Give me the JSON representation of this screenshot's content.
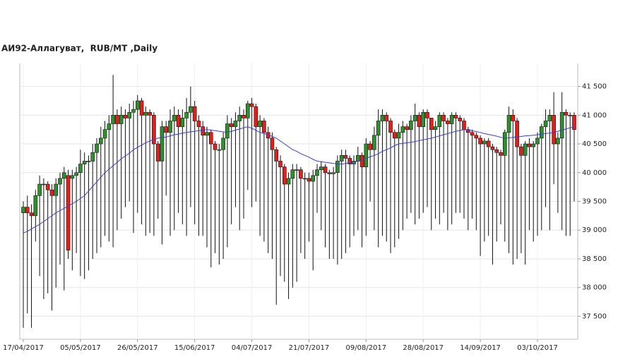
{
  "chart_data": {
    "type": "candlestick",
    "title": "АИ92-Аллагуват,  RUB/MT ,Daily",
    "categories": [
      "17/04/2017",
      null,
      null,
      null,
      null,
      null,
      null,
      null,
      null,
      null,
      null,
      null,
      null,
      null,
      "05/05/2017",
      null,
      null,
      null,
      null,
      null,
      null,
      null,
      null,
      null,
      null,
      null,
      null,
      null,
      "26/05/2017",
      null,
      null,
      null,
      null,
      null,
      null,
      null,
      null,
      null,
      null,
      null,
      null,
      null,
      "15/06/2017",
      null,
      null,
      null,
      null,
      null,
      null,
      null,
      null,
      null,
      null,
      null,
      null,
      null,
      "04/07/2017",
      null,
      null,
      null,
      null,
      null,
      null,
      null,
      null,
      null,
      null,
      null,
      null,
      null,
      "21/07/2017",
      null,
      null,
      null,
      null,
      null,
      null,
      null,
      null,
      null,
      null,
      null,
      null,
      null,
      "09/08/2017",
      null,
      null,
      null,
      null,
      null,
      null,
      null,
      null,
      null,
      null,
      null,
      null,
      null,
      "28/08/2017",
      null,
      null,
      null,
      null,
      null,
      null,
      null,
      null,
      null,
      null,
      null,
      null,
      null,
      "14/09/2017",
      null,
      null,
      null,
      null,
      null,
      null,
      null,
      null,
      null,
      null,
      null,
      null,
      null,
      "03/10/2017",
      null,
      null,
      null,
      null,
      null,
      null,
      null,
      null,
      null
    ],
    "open": [
      39300,
      39400,
      39300,
      39250,
      39600,
      39800,
      39800,
      39700,
      39600,
      39800,
      39900,
      39950,
      39900,
      39950,
      40000,
      40150,
      40200,
      40200,
      40350,
      40500,
      40600,
      40750,
      40850,
      41000,
      40850,
      41000,
      40950,
      41050,
      41100,
      41250,
      41000,
      41050,
      41000,
      40500,
      40200,
      40800,
      40700,
      40900,
      41000,
      40800,
      40950,
      41050,
      41150,
      40900,
      40800,
      40650,
      40700,
      40500,
      40400,
      40400,
      40600,
      40850,
      40800,
      40900,
      41000,
      40950,
      41200,
      41150,
      40800,
      40900,
      40700,
      40600,
      40400,
      40200,
      40100,
      39800,
      39900,
      40050,
      40050,
      39900,
      39900,
      39850,
      39950,
      40050,
      40100,
      40000,
      39980,
      40000,
      40200,
      40300,
      40250,
      40150,
      40200,
      40300,
      40100,
      40500,
      40400,
      40650,
      40900,
      41000,
      40900,
      40700,
      40600,
      40700,
      40800,
      40750,
      40900,
      41000,
      40800,
      41050,
      40950,
      40750,
      40800,
      41000,
      40900,
      40850,
      41000,
      40950,
      40900,
      40750,
      40700,
      40650,
      40600,
      40500,
      40550,
      40450,
      40400,
      40350,
      40300,
      40700,
      41000,
      40900,
      40450,
      40300,
      40500,
      40450,
      40500,
      40600,
      40800,
      40900,
      41000,
      40500,
      40600,
      41050,
      41000,
      41000
    ],
    "high": [
      39500,
      39600,
      39450,
      39700,
      39950,
      39900,
      39850,
      39800,
      39900,
      40000,
      40100,
      40050,
      40050,
      40100,
      40400,
      40350,
      40300,
      40500,
      40600,
      40800,
      40900,
      41000,
      41700,
      41100,
      41150,
      41100,
      41200,
      41250,
      41350,
      41300,
      41150,
      41100,
      41050,
      40550,
      40900,
      40900,
      41100,
      41150,
      41100,
      41100,
      41300,
      41500,
      41250,
      41000,
      40900,
      40800,
      40750,
      40550,
      40500,
      40700,
      41000,
      40950,
      41050,
      41150,
      41100,
      41250,
      41300,
      41200,
      41000,
      40950,
      40800,
      40700,
      40450,
      40300,
      40150,
      40000,
      40150,
      40150,
      40100,
      40000,
      40000,
      40050,
      40150,
      40200,
      40150,
      40050,
      40100,
      40300,
      40400,
      40400,
      40300,
      40300,
      40450,
      40350,
      40600,
      40550,
      40800,
      41100,
      41100,
      41050,
      40950,
      40750,
      40850,
      40900,
      40850,
      41000,
      41200,
      41050,
      41100,
      41100,
      40950,
      40900,
      41050,
      41050,
      40950,
      41050,
      41050,
      41000,
      40950,
      40800,
      40750,
      40700,
      40650,
      40600,
      40600,
      40500,
      40450,
      40400,
      40750,
      41150,
      41100,
      40950,
      40500,
      40550,
      40600,
      40550,
      40700,
      40850,
      41100,
      41100,
      41400,
      40700,
      41400,
      41100,
      41050,
      41050
    ],
    "low": [
      37300,
      37550,
      37300,
      38800,
      38200,
      37800,
      37900,
      37600,
      38000,
      38400,
      37950,
      38500,
      38300,
      38600,
      38200,
      38150,
      38300,
      38500,
      38600,
      38700,
      38900,
      38800,
      38700,
      39000,
      39200,
      39400,
      39500,
      38950,
      39300,
      39100,
      38900,
      38950,
      38900,
      39200,
      38750,
      39600,
      38900,
      39000,
      39300,
      39100,
      38900,
      39400,
      39100,
      38900,
      38900,
      38700,
      38350,
      38600,
      38400,
      38500,
      38700,
      39100,
      39400,
      39000,
      39200,
      39700,
      39400,
      39500,
      38900,
      38800,
      38600,
      38500,
      37700,
      38200,
      38100,
      37800,
      38000,
      38100,
      38600,
      38500,
      38800,
      38300,
      39300,
      39000,
      38700,
      38500,
      38500,
      38400,
      38500,
      38600,
      38700,
      38900,
      39000,
      38700,
      38900,
      39500,
      39000,
      38700,
      38900,
      38800,
      38600,
      38700,
      38850,
      39000,
      39200,
      39300,
      39100,
      39200,
      39300,
      39400,
      39000,
      39200,
      39100,
      39300,
      39000,
      39100,
      39300,
      39300,
      39200,
      39000,
      39200,
      39000,
      38550,
      38800,
      38900,
      38400,
      38800,
      39100,
      38800,
      38600,
      38400,
      38500,
      38600,
      38400,
      39000,
      38800,
      38900,
      39000,
      39400,
      39000,
      39800,
      39300,
      39000,
      38900,
      38900,
      39500
    ],
    "close": [
      39400,
      39300,
      39250,
      39600,
      39800,
      39800,
      39700,
      39600,
      39800,
      39900,
      40000,
      38650,
      39950,
      40000,
      40150,
      40200,
      40200,
      40350,
      40500,
      40600,
      40750,
      40850,
      41000,
      40850,
      41000,
      40950,
      41050,
      41100,
      41250,
      41000,
      41050,
      41000,
      40500,
      40200,
      40800,
      40700,
      40900,
      41000,
      40800,
      40950,
      41050,
      41150,
      40900,
      40800,
      40650,
      40700,
      40500,
      40400,
      40400,
      40600,
      40850,
      40800,
      40900,
      41000,
      40950,
      41200,
      41150,
      40800,
      40900,
      40700,
      40600,
      40400,
      40200,
      40100,
      39800,
      39900,
      40050,
      40050,
      39900,
      39900,
      39850,
      39950,
      40050,
      40100,
      40000,
      39980,
      40000,
      40200,
      40300,
      40250,
      40150,
      40200,
      40300,
      40100,
      40500,
      40400,
      40650,
      40900,
      41000,
      40900,
      40700,
      40600,
      40700,
      40800,
      40750,
      40900,
      41000,
      40800,
      41050,
      40950,
      40750,
      40800,
      41000,
      40900,
      40850,
      41000,
      40950,
      40900,
      40750,
      40700,
      40650,
      40600,
      40500,
      40550,
      40450,
      40400,
      40350,
      40300,
      40700,
      41000,
      40900,
      40450,
      40300,
      40500,
      40450,
      40500,
      40600,
      40800,
      40900,
      41000,
      40500,
      40600,
      41050,
      41000,
      41000,
      40750
    ],
    "ma": {
      "color": "#3b3bd6",
      "values": [
        38950,
        38980,
        39020,
        39060,
        39100,
        39150,
        39200,
        39250,
        39300,
        39340,
        39380,
        39420,
        39460,
        39500,
        39550,
        39600,
        39680,
        39760,
        39840,
        39920,
        40000,
        40060,
        40120,
        40180,
        40240,
        40290,
        40340,
        40400,
        40440,
        40480,
        40520,
        40550,
        40580,
        40600,
        40610,
        40620,
        40640,
        40660,
        40670,
        40690,
        40700,
        40710,
        40720,
        40730,
        40740,
        40750,
        40740,
        40730,
        40720,
        40710,
        40700,
        40720,
        40740,
        40760,
        40780,
        40800,
        40770,
        40740,
        40700,
        40680,
        40660,
        40630,
        40600,
        40550,
        40500,
        40450,
        40400,
        40370,
        40330,
        40300,
        40270,
        40230,
        40200,
        40190,
        40180,
        40170,
        40160,
        40155,
        40150,
        40160,
        40170,
        40185,
        40200,
        40220,
        40250,
        40275,
        40300,
        40330,
        40370,
        40400,
        40430,
        40470,
        40500,
        40510,
        40520,
        40530,
        40540,
        40560,
        40570,
        40585,
        40600,
        40620,
        40640,
        40660,
        40680,
        40700,
        40720,
        40735,
        40750,
        40740,
        40730,
        40715,
        40700,
        40680,
        40665,
        40650,
        40635,
        40615,
        40600,
        40605,
        40615,
        40620,
        40630,
        40640,
        40645,
        40650,
        40660,
        40670,
        40680,
        40690,
        40700,
        40720,
        40740,
        40760,
        40780,
        40800
      ]
    },
    "up_color": "#2f8f2f",
    "down_color": "#e0201c",
    "ylim": [
      37100,
      41900
    ],
    "yticks": [
      {
        "value": 37500,
        "label": "37 500"
      },
      {
        "value": 38000,
        "label": "38 000"
      },
      {
        "value": 38500,
        "label": "38 500"
      },
      {
        "value": 39000,
        "label": "39 000"
      },
      {
        "value": 39500,
        "label": "39 500"
      },
      {
        "value": 40000,
        "label": "40 000"
      },
      {
        "value": 40500,
        "label": "40 500"
      },
      {
        "value": 41000,
        "label": "41 000"
      },
      {
        "value": 41500,
        "label": "41 500"
      }
    ],
    "grid": true
  }
}
